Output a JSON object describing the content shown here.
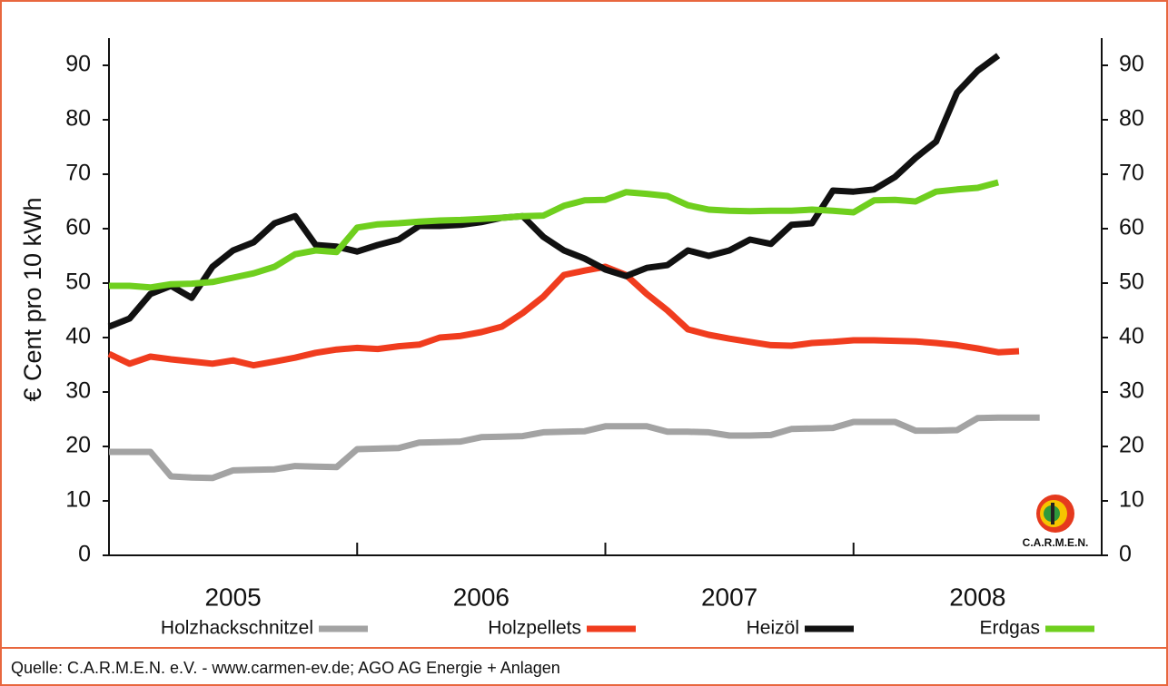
{
  "chart_data": {
    "type": "line",
    "y_label": "€ Cent pro 10 kWh",
    "x": [
      2005,
      2005.083,
      2005.167,
      2005.25,
      2005.333,
      2005.417,
      2005.5,
      2005.583,
      2005.667,
      2005.75,
      2005.833,
      2005.917,
      2006,
      2006.083,
      2006.167,
      2006.25,
      2006.333,
      2006.417,
      2006.5,
      2006.583,
      2006.667,
      2006.75,
      2006.833,
      2006.917,
      2007,
      2007.083,
      2007.167,
      2007.25,
      2007.333,
      2007.417,
      2007.5,
      2007.583,
      2007.667,
      2007.75,
      2007.833,
      2007.917,
      2008,
      2008.083,
      2008.167,
      2008.25,
      2008.333,
      2008.417,
      2008.5,
      2008.583,
      2008.667,
      2008.75
    ],
    "xlim": [
      2005,
      2009
    ],
    "xticks": [
      {
        "value": 2005.5,
        "label": "2005"
      },
      {
        "value": 2006.5,
        "label": "2006"
      },
      {
        "value": 2007.5,
        "label": "2007"
      },
      {
        "value": 2008.5,
        "label": "2008"
      }
    ],
    "x_separators": [
      2006,
      2007,
      2008
    ],
    "ylim": [
      0,
      95
    ],
    "yticks": [
      0,
      10,
      20,
      30,
      40,
      50,
      60,
      70,
      80,
      90
    ],
    "y2lim": [
      0,
      95
    ],
    "y2ticks": [
      0,
      10,
      20,
      30,
      40,
      50,
      60,
      70,
      80,
      90
    ],
    "legend": "bottom",
    "series": [
      {
        "name": "Holzhackschnitzel",
        "color": "#a3a3a3",
        "values": [
          19,
          19,
          19,
          14.5,
          14.3,
          14.2,
          15.6,
          15.7,
          15.8,
          16.4,
          16.3,
          16.2,
          19.5,
          19.6,
          19.7,
          20.7,
          20.8,
          20.9,
          21.7,
          21.8,
          21.9,
          22.6,
          22.7,
          22.8,
          23.7,
          23.7,
          23.7,
          22.7,
          22.7,
          22.6,
          22,
          22,
          22.1,
          23.2,
          23.3,
          23.4,
          24.5,
          24.5,
          24.5,
          22.9,
          22.9,
          23,
          25.2,
          25.3,
          25.3,
          25.3
        ]
      },
      {
        "name": "Holzpellets",
        "color": "#f03c1e",
        "values": [
          37,
          35.2,
          36.5,
          36,
          35.6,
          35.2,
          35.8,
          34.9,
          35.6,
          36.3,
          37.2,
          37.8,
          38.1,
          37.9,
          38.4,
          38.7,
          40,
          40.3,
          41,
          42,
          44.5,
          47.5,
          51.5,
          52.3,
          53,
          51.5,
          48,
          45,
          41.5,
          40.5,
          39.8,
          39.2,
          38.6,
          38.5,
          39,
          39.2,
          39.5,
          39.5,
          39.4,
          39.3,
          39,
          38.6,
          38,
          37.3,
          37.5,
          null
        ]
      },
      {
        "name": "Heizöl",
        "color": "#111111",
        "values": [
          42,
          43.5,
          48,
          49.5,
          47.3,
          53,
          56,
          57.5,
          61,
          62.3,
          57,
          56.7,
          55.8,
          57,
          58,
          60.5,
          60.5,
          60.7,
          61.2,
          62,
          62.3,
          58.5,
          56,
          54.5,
          52.5,
          51.3,
          52.8,
          53.3,
          56,
          55,
          56,
          58,
          57.2,
          60.7,
          61,
          67,
          66.8,
          67.2,
          69.5,
          73,
          76,
          85,
          89,
          91.8,
          null,
          null
        ]
      },
      {
        "name": "Erdgas",
        "color": "#6fcf1e",
        "values": [
          49.5,
          49.5,
          49.2,
          49.8,
          49.9,
          50.2,
          51,
          51.8,
          53,
          55.3,
          56,
          55.7,
          60.2,
          60.8,
          61,
          61.3,
          61.5,
          61.6,
          61.8,
          62,
          62.3,
          62.4,
          64.2,
          65.2,
          65.3,
          66.7,
          66.4,
          66,
          64.3,
          63.5,
          63.3,
          63.2,
          63.3,
          63.3,
          63.5,
          63.3,
          63,
          65.2,
          65.3,
          65,
          66.8,
          67.2,
          67.5,
          68.5,
          null,
          null
        ]
      }
    ],
    "logo_text": "C.A.R.M.E.N.",
    "source": "Quelle: C.A.R.M.E.N. e.V. - www.carmen-ev.de; AGO AG Energie + Anlagen"
  }
}
